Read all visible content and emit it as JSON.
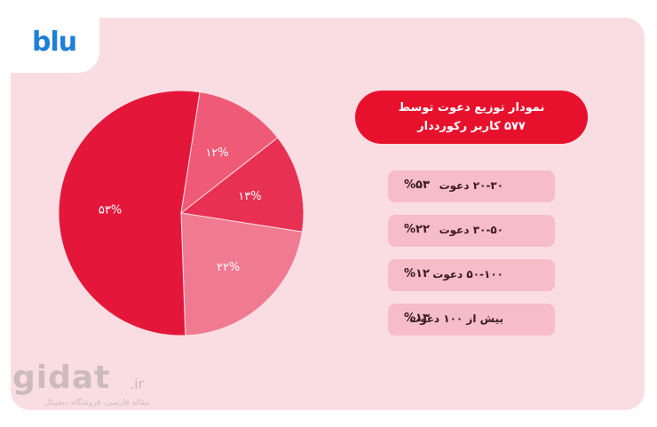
{
  "brand": {
    "logo_text": "blu"
  },
  "watermark": {
    "brand": "gidat",
    "tld": ".ir",
    "tagline": "مقاله فارسی، فروشگاه دیجیتال"
  },
  "title": {
    "line1": "نمودار توزیع دعوت توسط",
    "line2": "۵۷۷ کاربر رکورددار"
  },
  "legend": [
    {
      "label": "۲۰-۳۰ دعوت",
      "pct": "%۵۳"
    },
    {
      "label": "۳۰-۵۰ دعوت",
      "pct": "%۲۲"
    },
    {
      "label": "۵۰-۱۰۰ دعوت",
      "pct": "%۱۲"
    },
    {
      "label": "بیش از ۱۰۰ دعوت",
      "pct": "%۱۳"
    }
  ],
  "colors": {
    "background": "#fadde3",
    "accent": "#e8112d",
    "slice_53": "#e4173a",
    "slice_22": "#f07a91",
    "slice_13": "#e83152",
    "slice_12": "#ef5a76",
    "logo": "#1d7fd6"
  },
  "chart_data": {
    "type": "pie",
    "title": "نمودار توزیع دعوت توسط ۵۷۷ کاربر رکورددار",
    "slices": [
      {
        "label": "بیش از ۱۰۰ دعوت",
        "value": 13,
        "text": "۱۳%",
        "color": "#e83152"
      },
      {
        "label": "۳۰-۵۰ دعوت",
        "value": 22,
        "text": "۲۲%",
        "color": "#f07a91"
      },
      {
        "label": "۲۰-۳۰ دعوت",
        "value": 53,
        "text": "۵۳%",
        "color": "#e4173a"
      },
      {
        "label": "۵۰-۱۰۰ دعوت",
        "value": 12,
        "text": "۱۲%",
        "color": "#ef5a76"
      }
    ],
    "start_angle_deg": 52
  }
}
